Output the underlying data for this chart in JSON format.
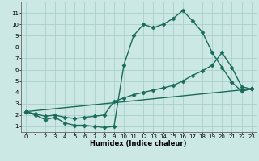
{
  "xlabel": "Humidex (Indice chaleur)",
  "xlim": [
    -0.5,
    23.5
  ],
  "ylim": [
    0.5,
    12
  ],
  "yticks": [
    1,
    2,
    3,
    4,
    5,
    6,
    7,
    8,
    9,
    10,
    11
  ],
  "xticks": [
    0,
    1,
    2,
    3,
    4,
    5,
    6,
    7,
    8,
    9,
    10,
    11,
    12,
    13,
    14,
    15,
    16,
    17,
    18,
    19,
    20,
    21,
    22,
    23
  ],
  "bg_color": "#cce8e4",
  "grid_color": "#aacfcb",
  "line_color": "#1a6b5a",
  "line_width": 1.0,
  "marker": "D",
  "marker_size": 2.5,
  "curve1_x": [
    0,
    1,
    2,
    3,
    4,
    5,
    6,
    7,
    8,
    9,
    10,
    11,
    12,
    13,
    14,
    15,
    16,
    17,
    18,
    19,
    20,
    21,
    22,
    23
  ],
  "curve1_y": [
    2.3,
    2.0,
    1.6,
    1.8,
    1.3,
    1.1,
    1.1,
    1.0,
    0.9,
    1.0,
    6.4,
    9.0,
    10.0,
    9.7,
    10.0,
    10.5,
    11.2,
    10.3,
    9.3,
    7.5,
    6.2,
    4.9,
    4.1,
    4.3
  ],
  "curve2_x": [
    0,
    1,
    2,
    3,
    4,
    5,
    6,
    7,
    8,
    9,
    10,
    11,
    12,
    13,
    14,
    15,
    16,
    17,
    18,
    19,
    20,
    21,
    22,
    23
  ],
  "curve2_y": [
    2.3,
    2.1,
    1.9,
    2.0,
    1.8,
    1.7,
    1.8,
    1.9,
    2.0,
    3.2,
    3.5,
    3.8,
    4.0,
    4.2,
    4.4,
    4.6,
    5.0,
    5.5,
    5.9,
    6.4,
    7.5,
    6.2,
    4.5,
    4.3
  ],
  "curve3_x": [
    0,
    23
  ],
  "curve3_y": [
    2.3,
    4.3
  ]
}
